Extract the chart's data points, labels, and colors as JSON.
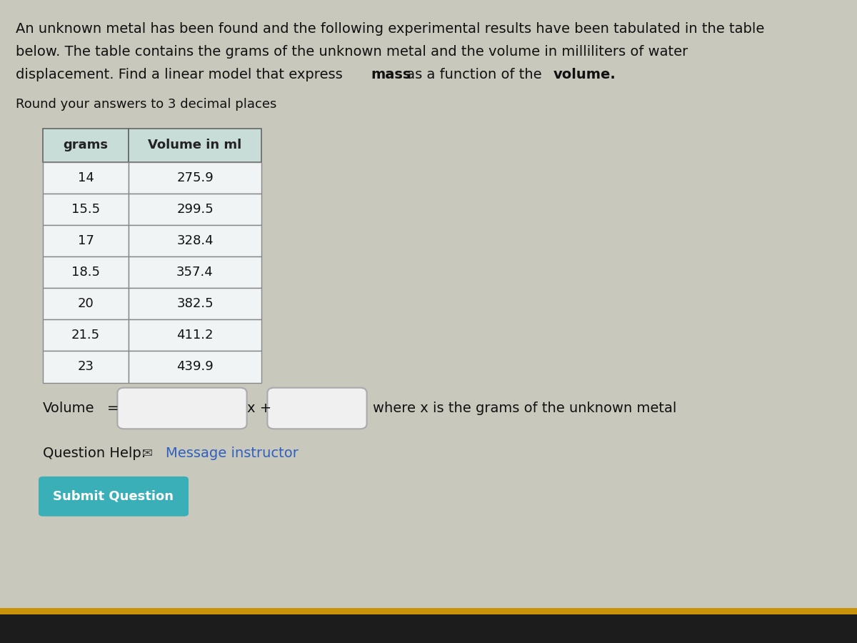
{
  "title_line1": "An unknown metal has been found and the following experimental results have been tabulated in the table",
  "title_line2": "below. The table contains the grams of the unknown metal and the volume in milliliters of water",
  "title_line3_pre": "displacement. Find a linear model that express ",
  "title_line3_bold": "mass",
  "title_line3_mid": " as a function of the ",
  "title_line3_bold2": "volume.",
  "subtitle": "Round your answers to 3 decimal places",
  "col1_header": "grams",
  "col2_header": "Volume in ml",
  "grams": [
    14,
    15.5,
    17,
    18.5,
    20,
    21.5,
    23
  ],
  "volume": [
    275.9,
    299.5,
    328.4,
    357.4,
    382.5,
    411.2,
    439.9
  ],
  "formula_label": "Volume",
  "formula_equals": "=",
  "formula_x": "x +",
  "formula_where": "where x is the grams of the unknown metal",
  "question_help_label": "Question Help:",
  "message_instructor": "Message instructor",
  "submit_button": "Submit Question",
  "bg_color": "#c8c8bc",
  "table_header_bg": "#c8dcd8",
  "table_header_fg": "#222222",
  "table_row_bg": "#f0f4f4",
  "table_border_color": "#888888",
  "input_box_color": "#f0f0f0",
  "submit_btn_bg": "#3aafb8",
  "submit_btn_fg": "#ffffff",
  "msg_instructor_color": "#3060c0",
  "font_size_body": 14,
  "font_size_table": 13,
  "font_size_subtitle": 13,
  "taskbar_color": "#c8940a"
}
